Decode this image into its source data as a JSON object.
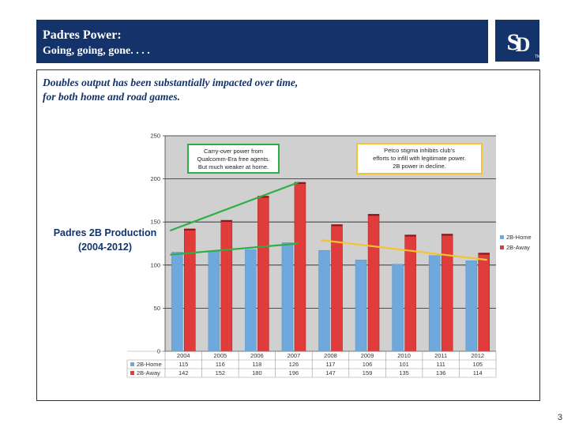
{
  "header": {
    "title": "Padres Power:",
    "subtitle": "Going, going, gone. . . ."
  },
  "logo": {
    "letters": "SD",
    "trademark": "TM"
  },
  "slide": {
    "subtitle_line1": "Doubles output has been substantially impacted over time,",
    "subtitle_line2": "for both home and road games.",
    "side_label_line1": "Padres 2B Production",
    "side_label_line2": "(2004-2012)",
    "page_number": "3"
  },
  "colors": {
    "navy": "#14336a",
    "home_bar": "#6fa8dc",
    "away_bar": "#e03c3c",
    "plot_bg": "#d0d0d0",
    "trend_green": "#2eae47",
    "trend_orange": "#f5c331"
  },
  "chart_data": {
    "type": "bar",
    "categories": [
      "2004",
      "2005",
      "2006",
      "2007",
      "2008",
      "2009",
      "2010",
      "2011",
      "2012"
    ],
    "series": [
      {
        "name": "2B-Home",
        "values": [
          115,
          116,
          118,
          126,
          117,
          106,
          101,
          111,
          105
        ]
      },
      {
        "name": "2B-Away",
        "values": [
          142,
          152,
          180,
          196,
          147,
          159,
          135,
          136,
          114
        ]
      }
    ],
    "ylim": [
      0,
      250
    ],
    "yticks": [
      0,
      50,
      100,
      150,
      200,
      250
    ],
    "grid": true,
    "legend": "right",
    "data_table": true,
    "trendlines": [
      {
        "series": "2B-Away",
        "color": "green",
        "start_year": "2004",
        "end_year": "2007",
        "start_value": 140,
        "end_value": 196
      },
      {
        "series": "2B-Home",
        "color": "green",
        "start_year": "2004",
        "end_year": "2007",
        "start_value": 112,
        "end_value": 125
      },
      {
        "series": "2B",
        "color": "orange",
        "start_year": "2008",
        "end_year": "2012",
        "start_value": 129,
        "end_value": 106
      }
    ],
    "annotations": [
      {
        "lines": [
          "Carry-over power from",
          "Qualcomm-Era free agents.",
          "But much weaker at home."
        ],
        "border": "green"
      },
      {
        "lines": [
          "Petco stigma inhibits club's",
          "efforts to infill with legitimate power.",
          "2B power in decline."
        ],
        "border": "orange"
      }
    ]
  }
}
